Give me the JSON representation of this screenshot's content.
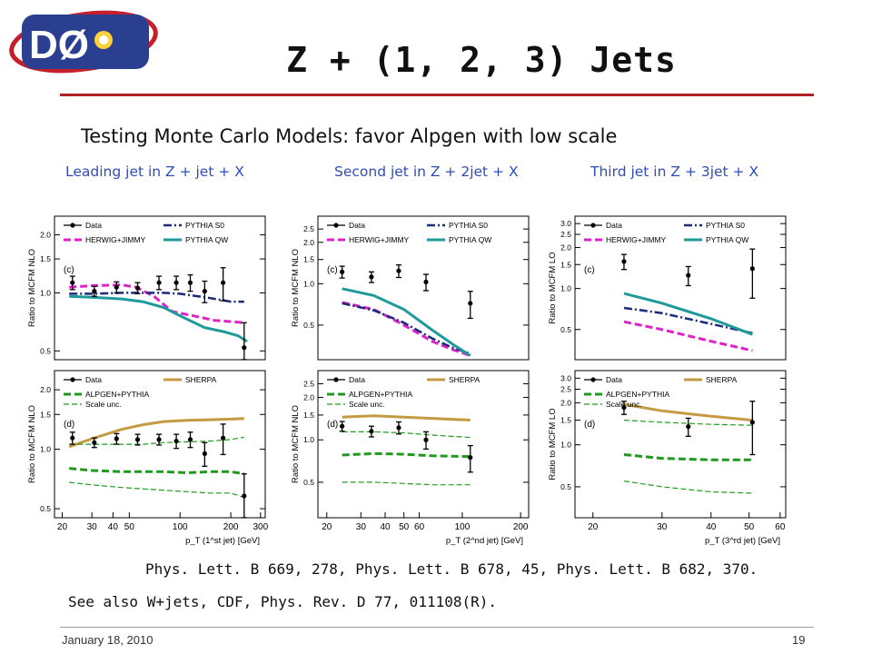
{
  "slide": {
    "logo_text": "DØ",
    "title": "Z + (1, 2, 3) Jets",
    "subtitle": "Testing Monte Carlo Models: favor Alpgen with low scale",
    "column_labels": [
      "Leading jet in Z + jet + X",
      "Second jet in Z + 2jet + X",
      "Third jet in Z + 3jet + X"
    ],
    "reference": "Phys. Lett. B 669, 278, Phys. Lett. B 678, 45, Phys. Lett. B 682, 370.",
    "see_also": "See also W+jets, CDF, Phys. Rev. D 77, 011108(R).",
    "date": "January 18, 2010",
    "page_number": "19"
  },
  "colors": {
    "accent_rule": "#b32024",
    "column_label": "#2e4cb8",
    "data": "#000000",
    "herwig_jimmy": "#e020c8",
    "pythia_s0": "#1c2a7a",
    "pythia_qw": "#1f9a9a",
    "sherpa": "#c49a42",
    "alpgen_pythia": "#1f9a1f"
  },
  "chart_data": [
    {
      "type": "line",
      "panel": "(c)",
      "ylabel": "Ratio to MCFM NLO",
      "xlabel": "",
      "x_scale": "log",
      "y_scale": "log",
      "xlim": [
        18,
        320
      ],
      "ylim": [
        0.45,
        2.5
      ],
      "y_ticks": [
        0.5,
        1.0,
        1.5,
        2.0
      ],
      "y_tick_labels": [
        "0.5",
        "1.0",
        "1.5",
        "2.0"
      ],
      "legend": [
        "Data",
        "HERWIG+JIMMY",
        "PYTHIA S0",
        "PYTHIA QW"
      ],
      "data_points": {
        "x": [
          23,
          31,
          42,
          56,
          75,
          95,
          115,
          140,
          180,
          240
        ],
        "y": [
          1.13,
          1.02,
          1.07,
          1.06,
          1.13,
          1.13,
          1.13,
          1.02,
          1.13,
          0.52
        ],
        "err": [
          0.09,
          0.06,
          0.07,
          0.07,
          0.09,
          0.09,
          0.11,
          0.13,
          0.22,
          0.18
        ]
      },
      "series": [
        {
          "name": "HERWIG+JIMMY",
          "x": [
            22,
            30,
            45,
            55,
            70,
            90,
            120,
            160,
            200,
            240
          ],
          "y": [
            1.07,
            1.09,
            1.1,
            1.07,
            0.96,
            0.8,
            0.76,
            0.72,
            0.71,
            0.7
          ]
        },
        {
          "name": "PYTHIA S0",
          "x": [
            22,
            30,
            45,
            60,
            80,
            100,
            150,
            200,
            240
          ],
          "y": [
            0.99,
            0.99,
            1.0,
            1.0,
            1.0,
            0.99,
            0.94,
            0.9,
            0.9
          ]
        },
        {
          "name": "PYTHIA QW",
          "x": [
            22,
            30,
            45,
            60,
            80,
            100,
            140,
            180,
            220,
            250
          ],
          "y": [
            0.96,
            0.95,
            0.93,
            0.9,
            0.84,
            0.76,
            0.66,
            0.63,
            0.6,
            0.56
          ]
        }
      ]
    },
    {
      "type": "line",
      "panel": "(d)",
      "ylabel": "Ratio to MCFM NLO",
      "xlabel": "p_T (1^st jet) [GeV]",
      "x_scale": "log",
      "y_scale": "log",
      "xlim": [
        18,
        320
      ],
      "ylim": [
        0.45,
        2.5
      ],
      "x_ticks": [
        20,
        30,
        40,
        50,
        100,
        200,
        300
      ],
      "x_tick_labels": [
        "20",
        "30",
        "40",
        "50",
        "100",
        "200",
        "300"
      ],
      "y_ticks": [
        0.5,
        1.0,
        1.5,
        2.0
      ],
      "y_tick_labels": [
        "0.5",
        "1.0",
        "1.5",
        "2.0"
      ],
      "legend": [
        "Data",
        "ALPGEN+PYTHIA",
        "Scale unc.",
        "SHERPA"
      ],
      "data_points": {
        "x": [
          23,
          31,
          42,
          56,
          75,
          95,
          115,
          140,
          180,
          240
        ],
        "y": [
          1.14,
          1.08,
          1.13,
          1.12,
          1.12,
          1.1,
          1.12,
          0.95,
          1.14,
          0.58
        ],
        "err": [
          0.08,
          0.06,
          0.07,
          0.07,
          0.07,
          0.09,
          0.1,
          0.13,
          0.2,
          0.17
        ]
      },
      "series": [
        {
          "name": "SHERPA",
          "x": [
            22,
            30,
            45,
            60,
            80,
            110,
            150,
            200,
            240
          ],
          "y": [
            1.03,
            1.13,
            1.26,
            1.33,
            1.38,
            1.4,
            1.41,
            1.42,
            1.43
          ]
        },
        {
          "name": "ALPGEN+PYTHIA",
          "x": [
            22,
            30,
            45,
            60,
            80,
            110,
            150,
            200,
            240
          ],
          "y": [
            0.8,
            0.78,
            0.77,
            0.77,
            0.77,
            0.76,
            0.77,
            0.77,
            0.75
          ]
        },
        {
          "name": "Scale unc. (upper)",
          "x": [
            22,
            30,
            45,
            60,
            80,
            110,
            150,
            200,
            240
          ],
          "y": [
            1.06,
            1.06,
            1.06,
            1.06,
            1.08,
            1.09,
            1.1,
            1.12,
            1.15
          ]
        },
        {
          "name": "Scale unc. (lower)",
          "x": [
            22,
            30,
            45,
            60,
            80,
            110,
            150,
            200,
            240
          ],
          "y": [
            0.68,
            0.66,
            0.64,
            0.63,
            0.62,
            0.61,
            0.6,
            0.6,
            0.57
          ]
        }
      ]
    },
    {
      "type": "line",
      "panel": "(c)",
      "ylabel": "Ratio to MCFM NLO",
      "xlabel": "",
      "x_scale": "log",
      "y_scale": "log",
      "xlim": [
        18,
        220
      ],
      "ylim": [
        0.28,
        3.1
      ],
      "y_ticks": [
        0.5,
        1.0,
        1.5,
        2.0,
        2.5
      ],
      "y_tick_labels": [
        "0.5",
        "1.0",
        "1.5",
        "2.0",
        "2.5"
      ],
      "legend": [
        "Data",
        "HERWIG+JIMMY",
        "PYTHIA S0",
        "PYTHIA QW"
      ],
      "data_points": {
        "x": [
          24,
          34,
          47,
          65,
          110
        ],
        "y": [
          1.22,
          1.12,
          1.24,
          1.03,
          0.72
        ],
        "err": [
          0.12,
          0.1,
          0.13,
          0.14,
          0.16
        ]
      },
      "series": [
        {
          "name": "HERWIG+JIMMY",
          "x": [
            24,
            35,
            50,
            70,
            90,
            110
          ],
          "y": [
            0.73,
            0.65,
            0.5,
            0.38,
            0.33,
            0.3
          ]
        },
        {
          "name": "PYTHIA S0",
          "x": [
            24,
            35,
            50,
            70,
            90,
            110
          ],
          "y": [
            0.72,
            0.64,
            0.52,
            0.4,
            0.34,
            0.31
          ]
        },
        {
          "name": "PYTHIA QW",
          "x": [
            24,
            35,
            50,
            70,
            90,
            110
          ],
          "y": [
            0.92,
            0.82,
            0.65,
            0.46,
            0.36,
            0.3
          ]
        }
      ]
    },
    {
      "type": "line",
      "panel": "(d)",
      "ylabel": "Ratio to MCFM NLO",
      "xlabel": "p_T (2^nd jet) [GeV]",
      "x_scale": "log",
      "y_scale": "log",
      "xlim": [
        18,
        220
      ],
      "ylim": [
        0.28,
        3.1
      ],
      "x_ticks": [
        20,
        30,
        40,
        50,
        60,
        100,
        200
      ],
      "x_tick_labels": [
        "20",
        "30",
        "40",
        "50",
        "60",
        "100",
        "200"
      ],
      "y_ticks": [
        0.5,
        1.0,
        1.5,
        2.0,
        2.5
      ],
      "y_tick_labels": [
        "0.5",
        "1.0",
        "1.5",
        "2.0",
        "2.5"
      ],
      "legend": [
        "Data",
        "ALPGEN+PYTHIA",
        "Scale unc.",
        "SHERPA"
      ],
      "data_points": {
        "x": [
          24,
          34,
          47,
          65,
          110
        ],
        "y": [
          1.25,
          1.15,
          1.22,
          1.0,
          0.75
        ],
        "err": [
          0.1,
          0.1,
          0.12,
          0.14,
          0.16
        ]
      },
      "series": [
        {
          "name": "SHERPA",
          "x": [
            24,
            35,
            50,
            70,
            110
          ],
          "y": [
            1.45,
            1.48,
            1.45,
            1.42,
            1.38
          ]
        },
        {
          "name": "ALPGEN+PYTHIA",
          "x": [
            24,
            35,
            50,
            70,
            110
          ],
          "y": [
            0.78,
            0.8,
            0.79,
            0.77,
            0.76
          ]
        },
        {
          "name": "Scale unc. (upper)",
          "x": [
            24,
            35,
            50,
            70,
            110
          ],
          "y": [
            1.14,
            1.14,
            1.12,
            1.08,
            1.04
          ]
        },
        {
          "name": "Scale unc. (lower)",
          "x": [
            24,
            35,
            50,
            70,
            110
          ],
          "y": [
            0.5,
            0.5,
            0.49,
            0.48,
            0.48
          ]
        }
      ]
    },
    {
      "type": "line",
      "panel": "(c)",
      "ylabel": "Ratio to MCFM LO",
      "xlabel": "",
      "x_scale": "log",
      "y_scale": "log",
      "xlim": [
        18,
        62
      ],
      "ylim": [
        0.3,
        3.4
      ],
      "y_ticks": [
        0.5,
        1.0,
        1.5,
        2.0,
        2.5,
        3.0
      ],
      "y_tick_labels": [
        "0.5",
        "1.0",
        "1.5",
        "2.0",
        "2.5",
        "3.0"
      ],
      "legend": [
        "Data",
        "HERWIG+JIMMY",
        "PYTHIA S0",
        "PYTHIA QW"
      ],
      "data_points": {
        "x": [
          24,
          35,
          51
        ],
        "y": [
          1.58,
          1.25,
          1.4
        ],
        "err": [
          0.2,
          0.2,
          0.55
        ]
      },
      "series": [
        {
          "name": "HERWIG+JIMMY",
          "x": [
            24,
            30,
            40,
            51
          ],
          "y": [
            0.57,
            0.5,
            0.41,
            0.35
          ]
        },
        {
          "name": "PYTHIA S0",
          "x": [
            24,
            30,
            40,
            51
          ],
          "y": [
            0.72,
            0.66,
            0.55,
            0.47
          ]
        },
        {
          "name": "PYTHIA QW",
          "x": [
            24,
            30,
            40,
            51
          ],
          "y": [
            0.92,
            0.78,
            0.6,
            0.46
          ]
        }
      ]
    },
    {
      "type": "line",
      "panel": "(d)",
      "ylabel": "Ratio to MCFM LO",
      "xlabel": "p_T (3^rd jet) [GeV]",
      "x_scale": "log",
      "y_scale": "log",
      "xlim": [
        18,
        62
      ],
      "ylim": [
        0.3,
        3.4
      ],
      "x_ticks": [
        20,
        30,
        40,
        50,
        60
      ],
      "x_tick_labels": [
        "20",
        "30",
        "40",
        "50",
        "60"
      ],
      "y_ticks": [
        0.5,
        1.0,
        1.5,
        2.0,
        2.5,
        3.0
      ],
      "y_tick_labels": [
        "0.5",
        "1.0",
        "1.5",
        "2.0",
        "2.5",
        "3.0"
      ],
      "legend": [
        "Data",
        "ALPGEN+PYTHIA",
        "Scale unc.",
        "SHERPA"
      ],
      "data_points": {
        "x": [
          24,
          35,
          51
        ],
        "y": [
          1.85,
          1.35,
          1.45
        ],
        "err": [
          0.2,
          0.2,
          0.6
        ]
      },
      "series": [
        {
          "name": "SHERPA",
          "x": [
            24,
            30,
            40,
            51
          ],
          "y": [
            1.95,
            1.75,
            1.6,
            1.5
          ]
        },
        {
          "name": "ALPGEN+PYTHIA",
          "x": [
            24,
            30,
            40,
            51
          ],
          "y": [
            0.85,
            0.8,
            0.78,
            0.78
          ]
        },
        {
          "name": "Scale unc. (upper)",
          "x": [
            24,
            30,
            40,
            51
          ],
          "y": [
            1.5,
            1.45,
            1.4,
            1.38
          ]
        },
        {
          "name": "Scale unc. (lower)",
          "x": [
            24,
            30,
            40,
            51
          ],
          "y": [
            0.55,
            0.5,
            0.46,
            0.45
          ]
        }
      ]
    }
  ]
}
